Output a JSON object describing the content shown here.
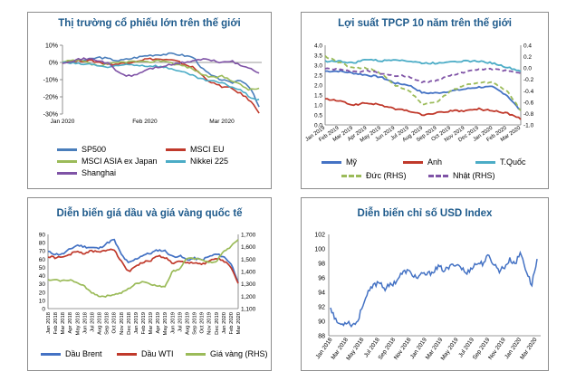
{
  "chart_data": [
    {
      "id": "stocks",
      "type": "line",
      "title": "Thị trường cổ phiếu lớn trên thế giới",
      "ylim": [
        -30,
        10
      ],
      "yticks": [
        "10%",
        "0%",
        "-10%",
        "-20%",
        "-30%"
      ],
      "ytick_values": [
        10,
        0,
        -10,
        -20,
        -30
      ],
      "xticks": [
        "Jan 2020",
        "Feb 2020",
        "Mar 2020"
      ],
      "xtick_positions": [
        0,
        31,
        60
      ],
      "x_range": [
        0,
        75
      ],
      "grid": false,
      "series": [
        {
          "name": "SP500",
          "color": "#4a7ebb",
          "values": [
            0,
            0.5,
            1,
            2,
            3,
            2,
            1,
            2,
            3,
            4,
            4.5,
            4.8,
            5,
            4,
            3,
            -4,
            -8,
            -10,
            -12,
            -10,
            -14,
            -26
          ]
        },
        {
          "name": "MSCI EU",
          "color": "#c0392b",
          "values": [
            0,
            0.5,
            1,
            1,
            0,
            -1,
            -1,
            0,
            1,
            2,
            2,
            1.5,
            1,
            -1,
            -3,
            -8,
            -12,
            -14,
            -15,
            -18,
            -22,
            -29
          ]
        },
        {
          "name": "MSCI ASIA ex Japan",
          "color": "#9bbb59",
          "values": [
            0,
            1,
            1,
            -1,
            -2,
            -1,
            0,
            0.5,
            0.5,
            0,
            1,
            1,
            -1,
            -2,
            -4,
            -7,
            -9,
            -8,
            -10,
            -13,
            -16,
            -15
          ]
        },
        {
          "name": "Nikkei 225",
          "color": "#4bacc6",
          "values": [
            0,
            -0.5,
            -1,
            -1,
            -2,
            -3,
            -2,
            -1,
            -1.5,
            -2,
            -2,
            -3,
            -4,
            -6,
            -8,
            -10,
            -11,
            -12,
            -14,
            -16,
            -20,
            -22
          ]
        },
        {
          "name": "Shanghai",
          "color": "#7f53a6",
          "values": [
            0,
            1,
            2,
            2,
            1,
            -1,
            -6,
            -8,
            -7,
            -4,
            -3,
            -2,
            -1,
            0,
            1,
            2,
            1,
            0,
            1,
            -2,
            -3,
            -6
          ]
        }
      ],
      "legend": [
        "SP500",
        "MSCI EU",
        "MSCI ASIA ex Japan",
        "Nikkei 225",
        "Shanghai"
      ]
    },
    {
      "id": "bonds",
      "type": "line",
      "title": "Lợi suất TPCP 10 năm trên thế giới",
      "ylim": [
        0,
        4
      ],
      "yticks": [
        "4.0",
        "3.5",
        "3.0",
        "2.5",
        "2.0",
        "1.5",
        "1.0",
        "0.5",
        "0.0"
      ],
      "ytick_values": [
        4,
        3.5,
        3,
        2.5,
        2,
        1.5,
        1,
        0.5,
        0
      ],
      "ylim_rhs": [
        -1,
        0.4
      ],
      "yticks_rhs": [
        "0.4",
        "0.2",
        "0.0",
        "-0.2",
        "-0.4",
        "-0.6",
        "-0.8",
        "-1.0"
      ],
      "ytick_values_rhs": [
        0.4,
        0.2,
        0,
        -0.2,
        -0.4,
        -0.6,
        -0.8,
        -1
      ],
      "xticks": [
        "Jan 2019",
        "Feb 2019",
        "Mar 2019",
        "Apr 2019",
        "May 2019",
        "Jun 2019",
        "Jul 2019",
        "Aug 2019",
        "Sep 2019",
        "Oct 2019",
        "Nov 2019",
        "Dec 2019",
        "Jan 2020",
        "Feb 2020",
        "Mar 2020"
      ],
      "grid": false,
      "series": [
        {
          "name": "Mỹ",
          "axis": "left",
          "color": "#4472c4",
          "values": [
            2.7,
            2.7,
            2.6,
            2.5,
            2.4,
            2.1,
            2.0,
            1.6,
            1.6,
            1.7,
            1.8,
            1.9,
            1.9,
            1.5,
            0.7
          ]
        },
        {
          "name": "Anh",
          "axis": "left",
          "color": "#c0392b",
          "values": [
            1.3,
            1.2,
            1.0,
            1.1,
            1.0,
            0.8,
            0.7,
            0.5,
            0.6,
            0.7,
            0.7,
            0.8,
            0.7,
            0.6,
            0.3
          ]
        },
        {
          "name": "T.Quốc",
          "axis": "left",
          "color": "#4bacc6",
          "values": [
            3.2,
            3.2,
            3.1,
            3.3,
            3.2,
            3.3,
            3.2,
            3.1,
            3.1,
            3.2,
            3.2,
            3.2,
            3.1,
            2.9,
            2.7
          ]
        },
        {
          "name": "Đức (RHS)",
          "axis": "right",
          "color": "#9bbb59",
          "dashed": true,
          "values": [
            0.2,
            0.1,
            0.0,
            0.0,
            -0.1,
            -0.3,
            -0.4,
            -0.65,
            -0.6,
            -0.4,
            -0.3,
            -0.25,
            -0.25,
            -0.4,
            -0.75
          ]
        },
        {
          "name": "Nhật (RHS)",
          "axis": "right",
          "color": "#7f53a6",
          "dashed": true,
          "values": [
            0.0,
            -0.03,
            -0.07,
            -0.05,
            -0.1,
            -0.13,
            -0.15,
            -0.25,
            -0.22,
            -0.12,
            -0.07,
            -0.02,
            -0.02,
            -0.05,
            -0.1
          ]
        }
      ],
      "legend": [
        "Mỹ",
        "Anh",
        "T.Quốc",
        "Đức (RHS)",
        "Nhật (RHS)"
      ]
    },
    {
      "id": "oil-gold",
      "type": "line",
      "title": "Diễn biến giá dầu và giá vàng quốc tế",
      "ylim": [
        0,
        90
      ],
      "yticks": [
        "90",
        "80",
        "70",
        "60",
        "50",
        "40",
        "30",
        "20",
        "10",
        "0"
      ],
      "ytick_values": [
        90,
        80,
        70,
        60,
        50,
        40,
        30,
        20,
        10,
        0
      ],
      "ylim_rhs": [
        1100,
        1700
      ],
      "yticks_rhs": [
        "1,700",
        "1,600",
        "1,500",
        "1,400",
        "1,300",
        "1,200",
        "1,100"
      ],
      "ytick_values_rhs": [
        1700,
        1600,
        1500,
        1400,
        1300,
        1200,
        1100
      ],
      "xticks": [
        "Jan 2018",
        "Feb 2018",
        "Mar 2018",
        "Apr 2018",
        "May 2018",
        "Jun 2018",
        "Jul 2018",
        "Aug 2018",
        "Sep 2018",
        "Oct 2018",
        "Nov 2018",
        "Dec 2018",
        "Jan 2019",
        "Feb 2019",
        "Mar 2019",
        "Apr 2019",
        "May 2019",
        "Jun 2019",
        "Jul 2019",
        "Aug 2019",
        "Sep 2019",
        "Oct 2019",
        "Nov 2019",
        "Dec 2019",
        "Jan 2020",
        "Feb 2020",
        "Mar 2020"
      ],
      "grid": false,
      "series": [
        {
          "name": "Dầu Brent",
          "axis": "left",
          "color": "#4472c4",
          "values": [
            69,
            66,
            66,
            72,
            77,
            75,
            74,
            73,
            79,
            84,
            66,
            55,
            60,
            65,
            67,
            71,
            70,
            63,
            64,
            59,
            61,
            59,
            63,
            66,
            63,
            55,
            33
          ]
        },
        {
          "name": "Dầu WTI",
          "axis": "left",
          "color": "#c0392b",
          "values": [
            63,
            62,
            62,
            66,
            69,
            67,
            70,
            68,
            71,
            73,
            57,
            45,
            52,
            56,
            58,
            64,
            62,
            55,
            57,
            55,
            56,
            54,
            57,
            61,
            58,
            50,
            30
          ]
        },
        {
          "name": "Giá vàng (RHS)",
          "axis": "right",
          "color": "#9bbb59",
          "values": [
            1330,
            1330,
            1325,
            1335,
            1305,
            1280,
            1230,
            1200,
            1200,
            1215,
            1225,
            1260,
            1300,
            1320,
            1300,
            1280,
            1280,
            1400,
            1420,
            1510,
            1500,
            1500,
            1470,
            1480,
            1560,
            1600,
            1660
          ]
        }
      ],
      "legend": [
        "Dầu Brent",
        "Dầu WTI",
        "Giá vàng (RHS)"
      ]
    },
    {
      "id": "usd",
      "type": "line",
      "title": "Diễn biến chỉ số USD Index",
      "ylim": [
        88,
        102
      ],
      "yticks": [
        "102",
        "100",
        "98",
        "96",
        "94",
        "92",
        "90",
        "88"
      ],
      "ytick_values": [
        102,
        100,
        98,
        96,
        94,
        92,
        90,
        88
      ],
      "xticks": [
        "Jan 2018",
        "Mar 2018",
        "May 2018",
        "Jul 2018",
        "Sep 2018",
        "Nov 2018",
        "Jan 2019",
        "Mar 2019",
        "May 2019",
        "Jul 2019",
        "Sep 2019",
        "Nov 2019",
        "Jan 2020",
        "Mar 2020"
      ],
      "grid": false,
      "series": [
        {
          "name": "USD Index",
          "color": "#4472c4",
          "values": [
            92,
            90,
            89.5,
            90,
            89.5,
            90,
            92.5,
            94,
            95,
            95.5,
            94.5,
            95,
            95.5,
            96.5,
            97,
            96.5,
            96,
            96.5,
            96.5,
            97,
            97.5,
            97,
            97.5,
            98,
            97.5,
            96.5,
            97.5,
            98,
            98,
            99,
            98,
            97,
            97.5,
            98.5,
            98,
            99.5,
            97,
            95,
            98.5
          ]
        }
      ]
    }
  ]
}
